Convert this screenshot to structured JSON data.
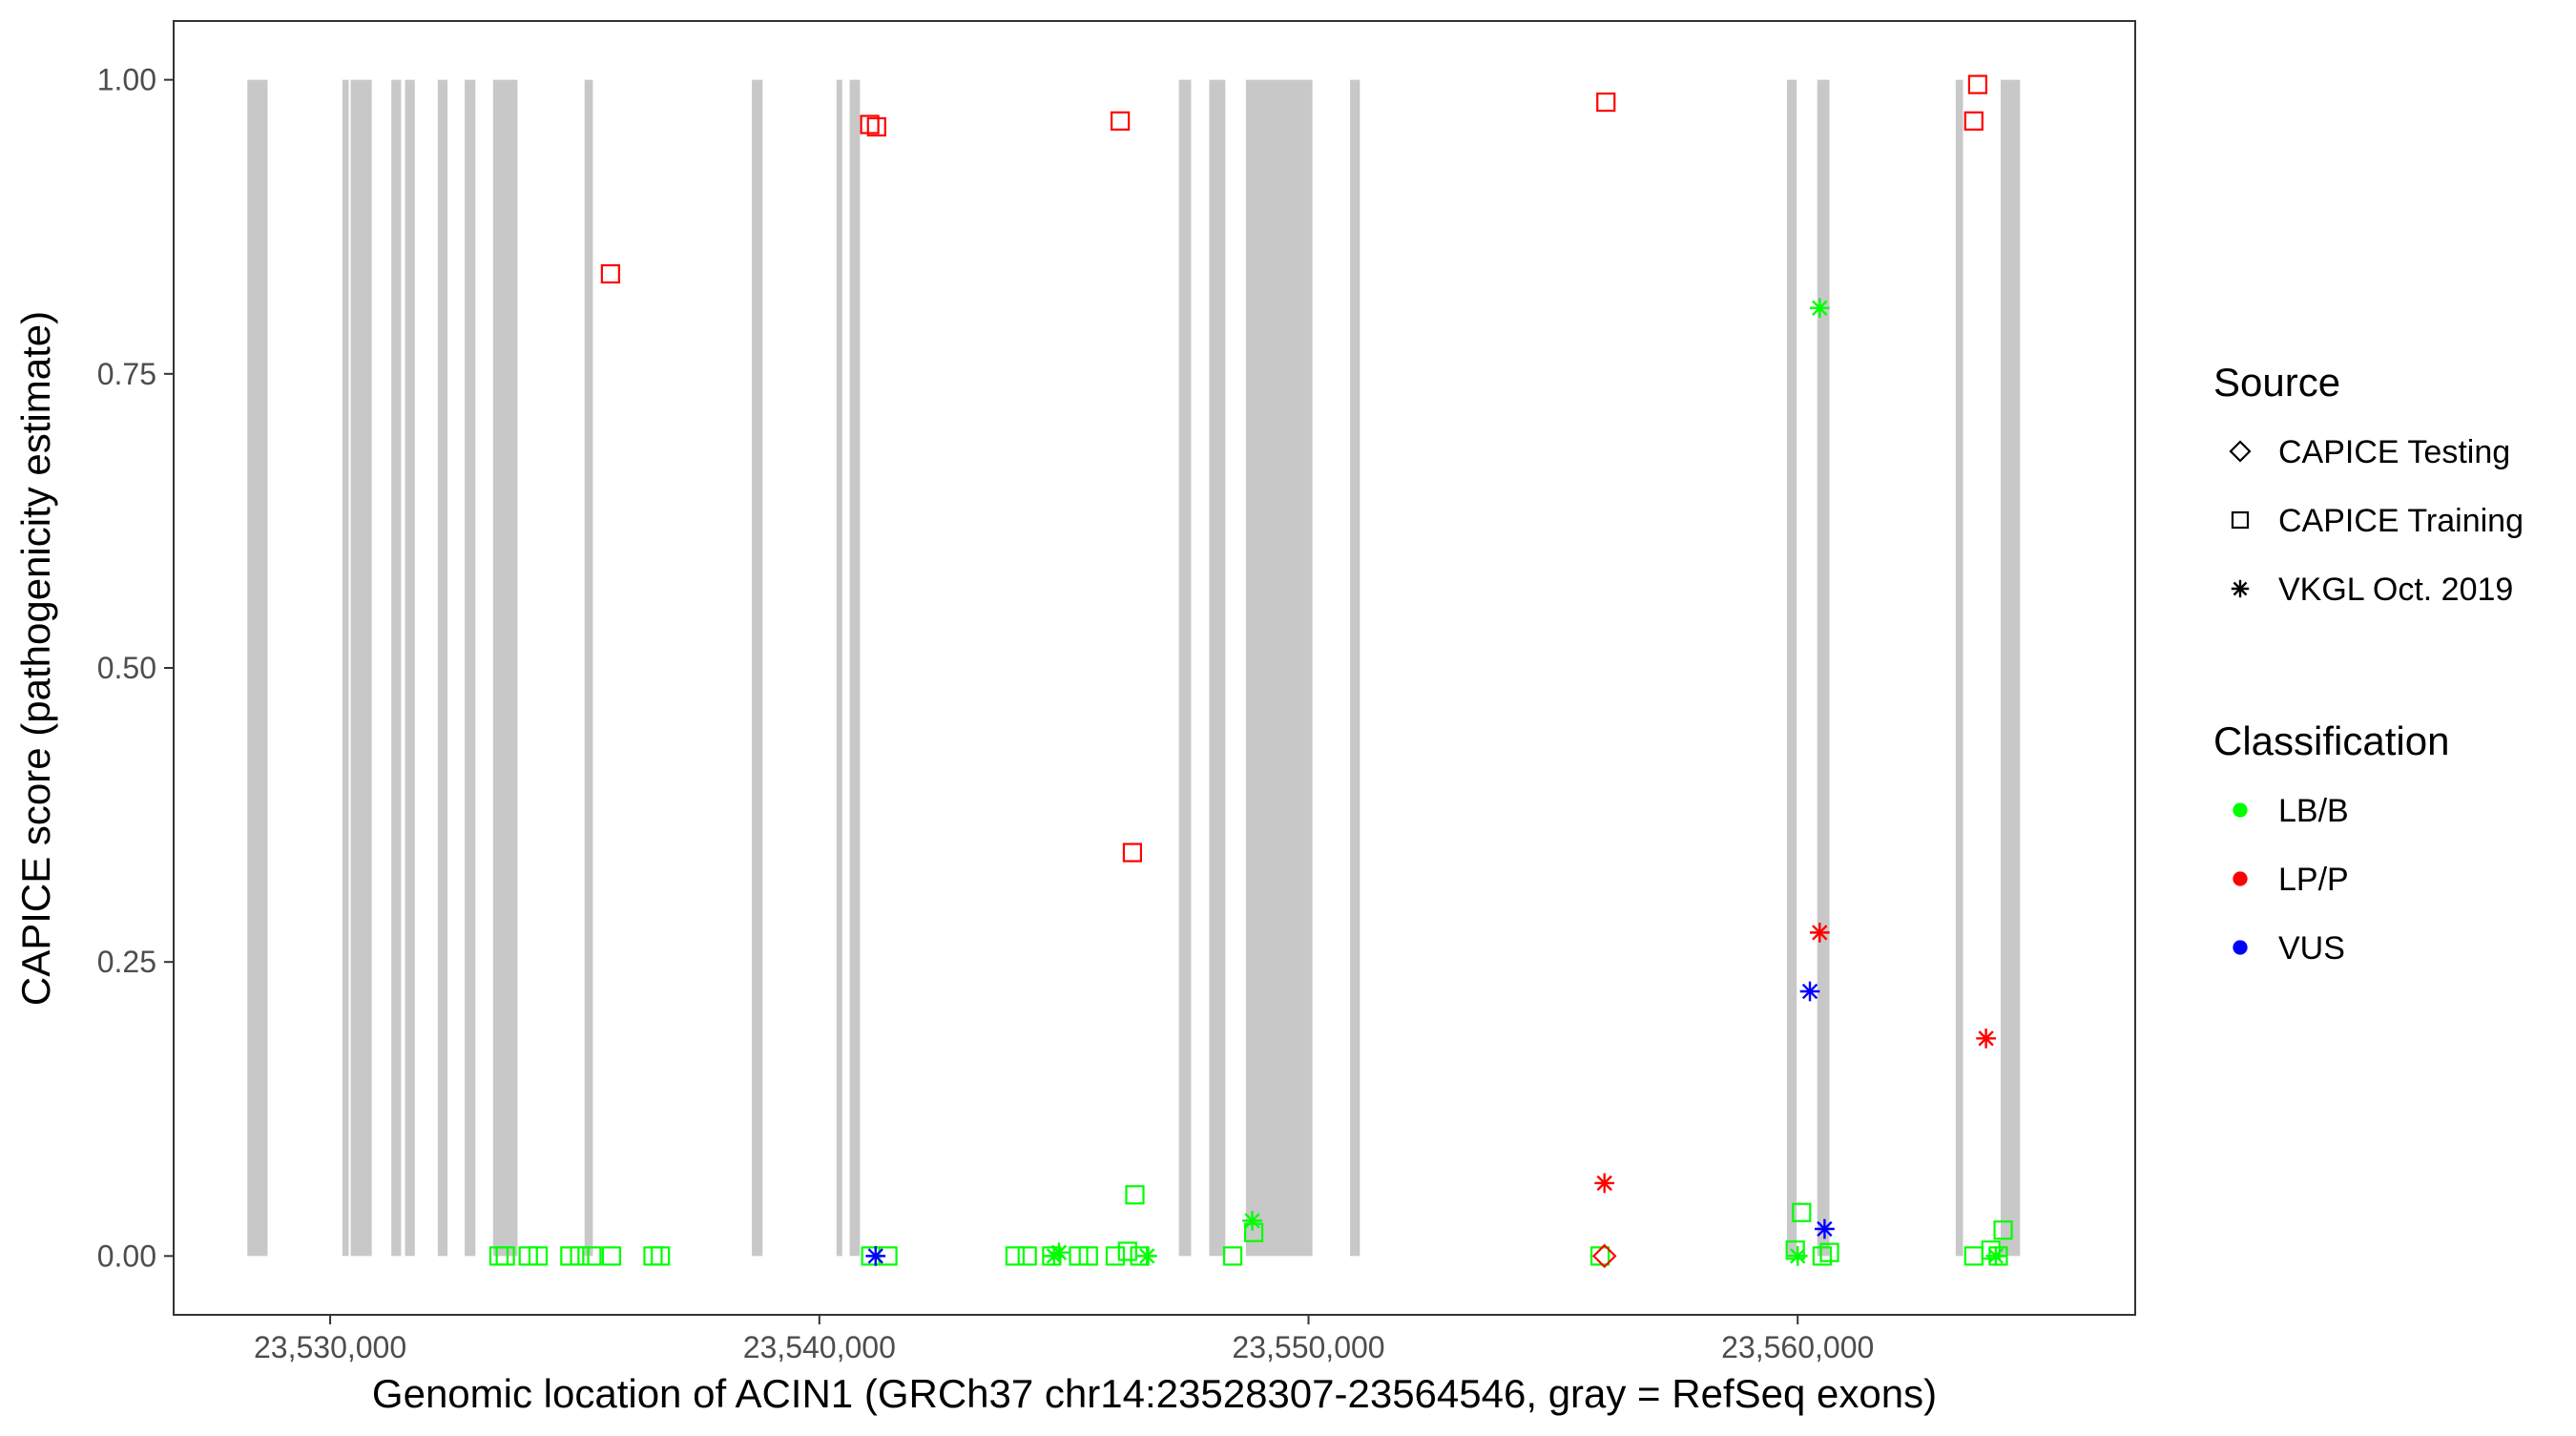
{
  "chart_data": {
    "type": "scatter",
    "xlabel": "Genomic location of ACIN1 (GRCh37 chr14:23528307-23564546, gray = RefSeq exons)",
    "ylabel": "CAPICE score (pathogenicity estimate)",
    "xlim": [
      23526800,
      23566900
    ],
    "ylim": [
      -0.05,
      1.05
    ],
    "x_ticks": [
      23530000,
      23540000,
      23550000,
      23560000
    ],
    "x_tick_labels": [
      "23,530,000",
      "23,540,000",
      "23,550,000",
      "23,560,000"
    ],
    "y_ticks": [
      0,
      0.25,
      0.5,
      0.75,
      1.0
    ],
    "y_tick_labels": [
      "0.00",
      "0.25",
      "0.50",
      "0.75",
      "1.00"
    ],
    "grid": false,
    "exon_color": "#c8c8c8",
    "exons": [
      [
        23528307,
        23528720
      ],
      [
        23530250,
        23530380
      ],
      [
        23530420,
        23530850
      ],
      [
        23531250,
        23531450
      ],
      [
        23531530,
        23531730
      ],
      [
        23532200,
        23532400
      ],
      [
        23532750,
        23532970
      ],
      [
        23533330,
        23533830
      ],
      [
        23535200,
        23535370
      ],
      [
        23538620,
        23538840
      ],
      [
        23540350,
        23540430
      ],
      [
        23540620,
        23540830
      ],
      [
        23547350,
        23547600
      ],
      [
        23547970,
        23548300
      ],
      [
        23548720,
        23550080
      ],
      [
        23550850,
        23551050
      ],
      [
        23559780,
        23559980
      ],
      [
        23560400,
        23560650
      ],
      [
        23563230,
        23563380
      ],
      [
        23564150,
        23564546
      ]
    ],
    "legends": [
      {
        "title": "Source",
        "position": "right",
        "items": [
          {
            "label": "CAPICE Testing",
            "shape": "diamond"
          },
          {
            "label": "CAPICE Training",
            "shape": "square"
          },
          {
            "label": "VKGL Oct. 2019",
            "shape": "asterisk"
          }
        ]
      },
      {
        "title": "Classification",
        "position": "right",
        "items": [
          {
            "label": "LB/B",
            "color": "#00ff00"
          },
          {
            "label": "LP/P",
            "color": "#ff0000"
          },
          {
            "label": "VUS",
            "color": "#0000ff"
          }
        ]
      }
    ],
    "colors": {
      "LB/B": "#00ff00",
      "LP/P": "#ff0000",
      "VUS": "#0000ff"
    },
    "series": [
      {
        "source": "CAPICE Training",
        "shape": "square",
        "points": [
          {
            "x": 23535730,
            "y": 0.835,
            "class": "LP/P"
          },
          {
            "x": 23541030,
            "y": 0.962,
            "class": "LP/P"
          },
          {
            "x": 23541170,
            "y": 0.96,
            "class": "LP/P"
          },
          {
            "x": 23546150,
            "y": 0.965,
            "class": "LP/P"
          },
          {
            "x": 23546400,
            "y": 0.343,
            "class": "LP/P"
          },
          {
            "x": 23556080,
            "y": 0.981,
            "class": "LP/P"
          },
          {
            "x": 23563600,
            "y": 0.965,
            "class": "LP/P"
          },
          {
            "x": 23563680,
            "y": 0.996,
            "class": "LP/P"
          },
          {
            "x": 23533450,
            "y": 0.0,
            "class": "LB/B"
          },
          {
            "x": 23533580,
            "y": 0.0,
            "class": "LB/B"
          },
          {
            "x": 23534050,
            "y": 0.0,
            "class": "LB/B"
          },
          {
            "x": 23534250,
            "y": 0.0,
            "class": "LB/B"
          },
          {
            "x": 23534900,
            "y": 0.0,
            "class": "LB/B"
          },
          {
            "x": 23535100,
            "y": 0.0,
            "class": "LB/B"
          },
          {
            "x": 23535350,
            "y": 0.0,
            "class": "LB/B"
          },
          {
            "x": 23535750,
            "y": 0.0,
            "class": "LB/B"
          },
          {
            "x": 23536600,
            "y": 0.0,
            "class": "LB/B"
          },
          {
            "x": 23536750,
            "y": 0.0,
            "class": "LB/B"
          },
          {
            "x": 23541050,
            "y": 0.0,
            "class": "LB/B"
          },
          {
            "x": 23541400,
            "y": 0.0,
            "class": "LB/B"
          },
          {
            "x": 23544000,
            "y": 0.0,
            "class": "LB/B"
          },
          {
            "x": 23544250,
            "y": 0.0,
            "class": "LB/B"
          },
          {
            "x": 23544750,
            "y": 0.0,
            "class": "LB/B"
          },
          {
            "x": 23545300,
            "y": 0.0,
            "class": "LB/B"
          },
          {
            "x": 23545500,
            "y": 0.0,
            "class": "LB/B"
          },
          {
            "x": 23546050,
            "y": 0.0,
            "class": "LB/B"
          },
          {
            "x": 23546300,
            "y": 0.004,
            "class": "LB/B"
          },
          {
            "x": 23546450,
            "y": 0.052,
            "class": "LB/B"
          },
          {
            "x": 23546550,
            "y": 0.0,
            "class": "LB/B"
          },
          {
            "x": 23548450,
            "y": 0.0,
            "class": "LB/B"
          },
          {
            "x": 23548880,
            "y": 0.02,
            "class": "LB/B"
          },
          {
            "x": 23555960,
            "y": 0.0,
            "class": "LB/B"
          },
          {
            "x": 23559950,
            "y": 0.005,
            "class": "LB/B"
          },
          {
            "x": 23560080,
            "y": 0.037,
            "class": "LB/B"
          },
          {
            "x": 23560500,
            "y": 0.0,
            "class": "LB/B"
          },
          {
            "x": 23560650,
            "y": 0.003,
            "class": "LB/B"
          },
          {
            "x": 23563600,
            "y": 0.0,
            "class": "LB/B"
          },
          {
            "x": 23563950,
            "y": 0.005,
            "class": "LB/B"
          },
          {
            "x": 23564100,
            "y": 0.0,
            "class": "LB/B"
          },
          {
            "x": 23564200,
            "y": 0.022,
            "class": "LB/B"
          }
        ]
      },
      {
        "source": "CAPICE Testing",
        "shape": "diamond",
        "points": [
          {
            "x": 23556050,
            "y": 0.0,
            "class": "LP/P"
          }
        ]
      },
      {
        "source": "VKGL Oct. 2019",
        "shape": "asterisk",
        "points": [
          {
            "x": 23560450,
            "y": 0.806,
            "class": "LB/B"
          },
          {
            "x": 23544800,
            "y": 0.0,
            "class": "LB/B"
          },
          {
            "x": 23544900,
            "y": 0.003,
            "class": "LB/B"
          },
          {
            "x": 23546700,
            "y": 0.0,
            "class": "LB/B"
          },
          {
            "x": 23548850,
            "y": 0.03,
            "class": "LB/B"
          },
          {
            "x": 23560000,
            "y": 0.0,
            "class": "LB/B"
          },
          {
            "x": 23564050,
            "y": 0.0,
            "class": "LB/B"
          },
          {
            "x": 23556050,
            "y": 0.062,
            "class": "LP/P"
          },
          {
            "x": 23560450,
            "y": 0.275,
            "class": "LP/P"
          },
          {
            "x": 23563850,
            "y": 0.185,
            "class": "LP/P"
          },
          {
            "x": 23560250,
            "y": 0.225,
            "class": "VUS"
          },
          {
            "x": 23560550,
            "y": 0.023,
            "class": "VUS"
          },
          {
            "x": 23541150,
            "y": 0.0,
            "class": "VUS"
          }
        ]
      }
    ]
  }
}
